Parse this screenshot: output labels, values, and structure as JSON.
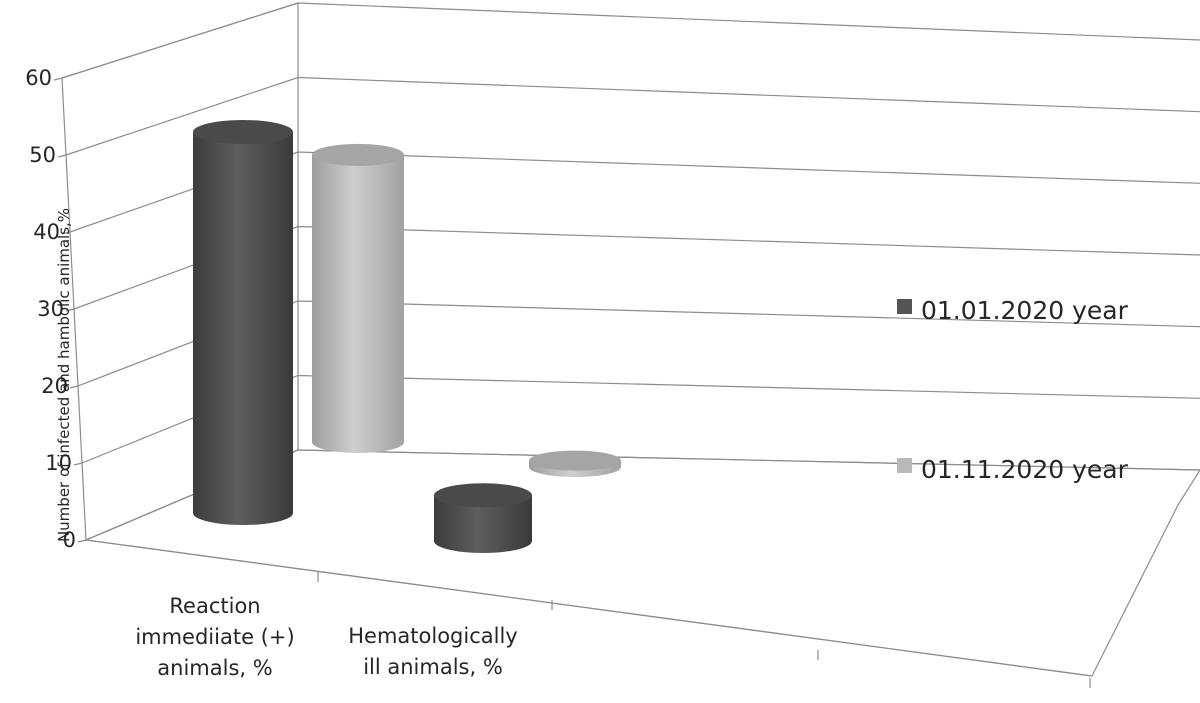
{
  "chart_data": {
    "type": "bar",
    "style": "3d-cylinder",
    "categories": [
      "Reaction immediiate (+) animals, %",
      "Hematologically ill animals, %"
    ],
    "category_lines": [
      [
        "Reaction",
        "immediiate (+)",
        "animals, %"
      ],
      [
        "Hematologically",
        "ill animals, %"
      ]
    ],
    "series": [
      {
        "name": "01.01.2020 year",
        "values": [
          50,
          6
        ],
        "color": "#555555"
      },
      {
        "name": "01.11.2020 year",
        "values": [
          45,
          1
        ],
        "color": "#b9b9b9"
      }
    ],
    "ylabel": "Number of infected and hambolic animals,%",
    "ylim": [
      0,
      60
    ],
    "yticks": [
      0,
      10,
      20,
      30,
      40,
      50,
      60
    ],
    "grid": true,
    "legend_position": "right"
  }
}
